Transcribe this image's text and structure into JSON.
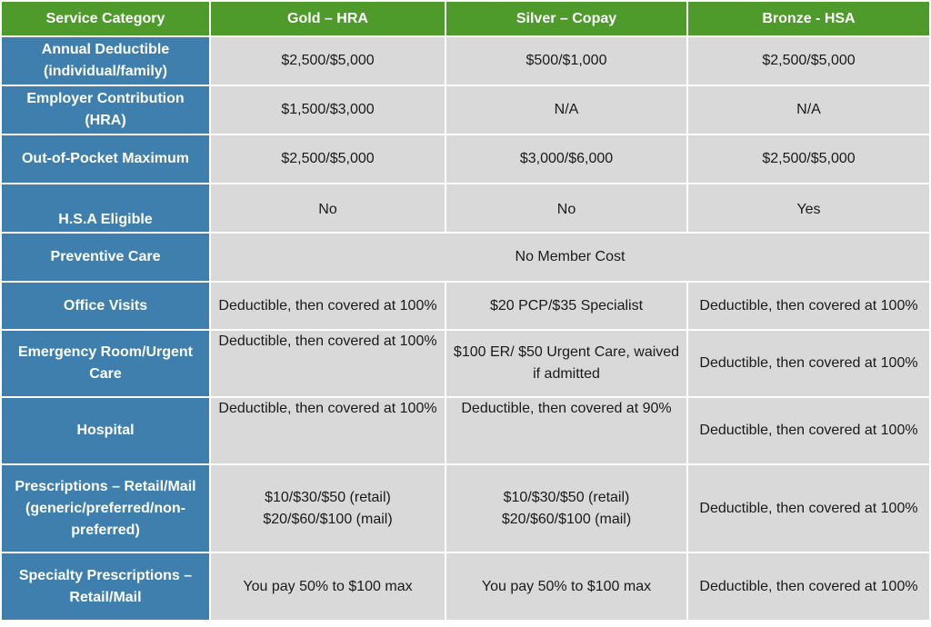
{
  "table": {
    "headers": [
      "Service Category",
      "Gold – HRA",
      "Silver – Copay",
      "Bronze - HSA"
    ],
    "rows": [
      {
        "category": "Annual Deductible (individual/family)",
        "gold": "$2,500/$5,000",
        "silver": "$500/$1,000",
        "bronze": "$2,500/$5,000"
      },
      {
        "category": "Employer Contribution (HRA)",
        "gold": "$1,500/$3,000",
        "silver": "N/A",
        "bronze": "N/A"
      },
      {
        "category": "Out-of-Pocket Maximum",
        "gold": "$2,500/$5,000",
        "silver": "$3,000/$6,000",
        "bronze": "$2,500/$5,000"
      },
      {
        "category": "H.S.A Eligible",
        "gold": "No",
        "silver": "No",
        "bronze": "Yes"
      },
      {
        "category": "Preventive Care",
        "all": "No Member Cost"
      },
      {
        "category": "Office Visits",
        "gold": "Deductible, then covered at 100%",
        "silver": "$20 PCP/$35 Specialist",
        "bronze": "Deductible, then covered at 100%"
      },
      {
        "category": "Emergency Room/Urgent Care",
        "gold": "Deductible, then covered at 100%",
        "silver": "$100 ER/ $50 Urgent Care, waived if admitted",
        "bronze": "Deductible, then covered at 100%"
      },
      {
        "category": "Hospital",
        "gold": "Deductible, then covered at 100%",
        "silver": "Deductible, then covered at 90%",
        "bronze": "Deductible, then covered at 100%"
      },
      {
        "category": "Prescriptions – Retail/Mail (generic/preferred/non-preferred)",
        "gold": [
          "$10/$30/$50 (retail)",
          "$20/$60/$100 (mail)"
        ],
        "silver": [
          "$10/$30/$50 (retail)",
          "$20/$60/$100 (mail)"
        ],
        "bronze": "Deductible, then covered at 100%"
      },
      {
        "category": "Specialty Prescriptions – Retail/Mail",
        "gold": "You pay 50% to $100 max",
        "silver": "You pay 50% to $100 max",
        "bronze": "Deductible, then covered at 100%"
      }
    ]
  },
  "colors": {
    "header_bg": "#4e9a2b",
    "row_header_bg": "#3f7fae",
    "cell_bg": "#d9d9d9",
    "header_text": "#ffffff"
  }
}
